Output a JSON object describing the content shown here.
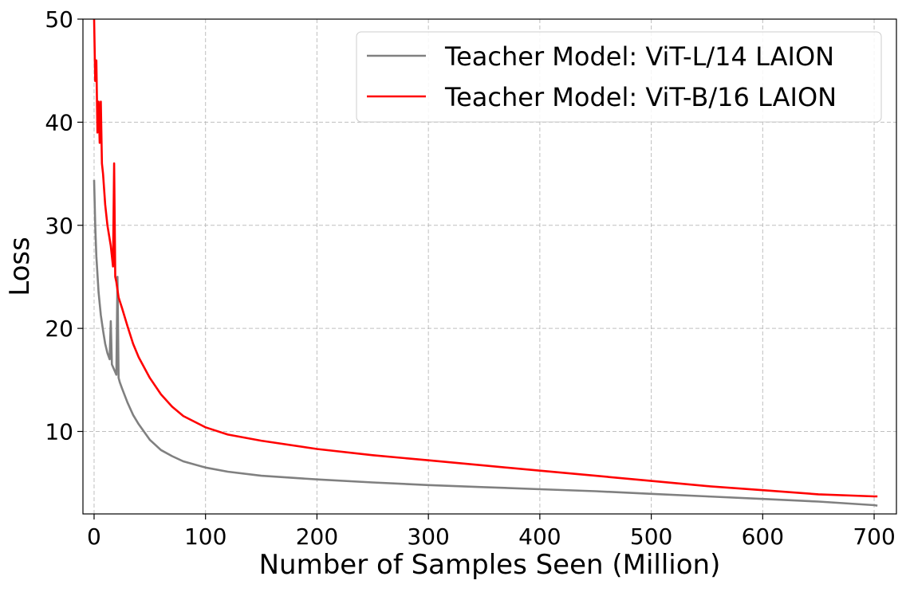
{
  "chart_data": {
    "type": "line",
    "title": "",
    "xlabel": "Number of Samples Seen (Million)",
    "ylabel": "Loss",
    "xlim": [
      -10,
      720
    ],
    "ylim": [
      2,
      50
    ],
    "xticks": [
      0,
      100,
      200,
      300,
      400,
      500,
      600,
      700
    ],
    "yticks": [
      10,
      20,
      30,
      40,
      50
    ],
    "grid": true,
    "legend_position": "top-right",
    "series": [
      {
        "name": "Teacher Model: ViT-L/14 LAION",
        "color": "#808080",
        "x": [
          0,
          1,
          2,
          4,
          6,
          8,
          10,
          12,
          14,
          15,
          16,
          18,
          20,
          21,
          22,
          23,
          25,
          30,
          35,
          40,
          50,
          60,
          70,
          80,
          100,
          120,
          150,
          200,
          250,
          300,
          350,
          400,
          450,
          500,
          550,
          600,
          650,
          700,
          703
        ],
        "y": [
          34.4,
          30,
          27,
          23.5,
          21.3,
          19.8,
          18.5,
          17.6,
          17,
          20.7,
          16.5,
          16,
          15.5,
          25,
          15.2,
          14.8,
          14.2,
          12.8,
          11.6,
          10.7,
          9.2,
          8.2,
          7.6,
          7.1,
          6.5,
          6.1,
          5.7,
          5.35,
          5.05,
          4.8,
          4.6,
          4.4,
          4.2,
          3.95,
          3.7,
          3.45,
          3.2,
          2.85,
          2.8
        ]
      },
      {
        "name": "Teacher Model: ViT-B/16 LAION",
        "color": "#ff0000",
        "x": [
          0,
          1,
          2,
          3,
          4,
          5,
          6,
          7,
          8,
          10,
          12,
          15,
          17,
          18,
          19,
          20,
          22,
          25,
          30,
          35,
          40,
          50,
          60,
          70,
          80,
          100,
          120,
          150,
          200,
          250,
          300,
          350,
          400,
          450,
          500,
          550,
          600,
          650,
          700,
          703
        ],
        "y": [
          50,
          44,
          46,
          39,
          42,
          38,
          42,
          36,
          35,
          32,
          30,
          28,
          26,
          36,
          25,
          24.5,
          23,
          22,
          20.2,
          18.5,
          17.2,
          15.2,
          13.6,
          12.4,
          11.5,
          10.4,
          9.7,
          9.1,
          8.3,
          7.7,
          7.2,
          6.7,
          6.2,
          5.7,
          5.2,
          4.7,
          4.3,
          3.9,
          3.7,
          3.7
        ]
      }
    ]
  }
}
